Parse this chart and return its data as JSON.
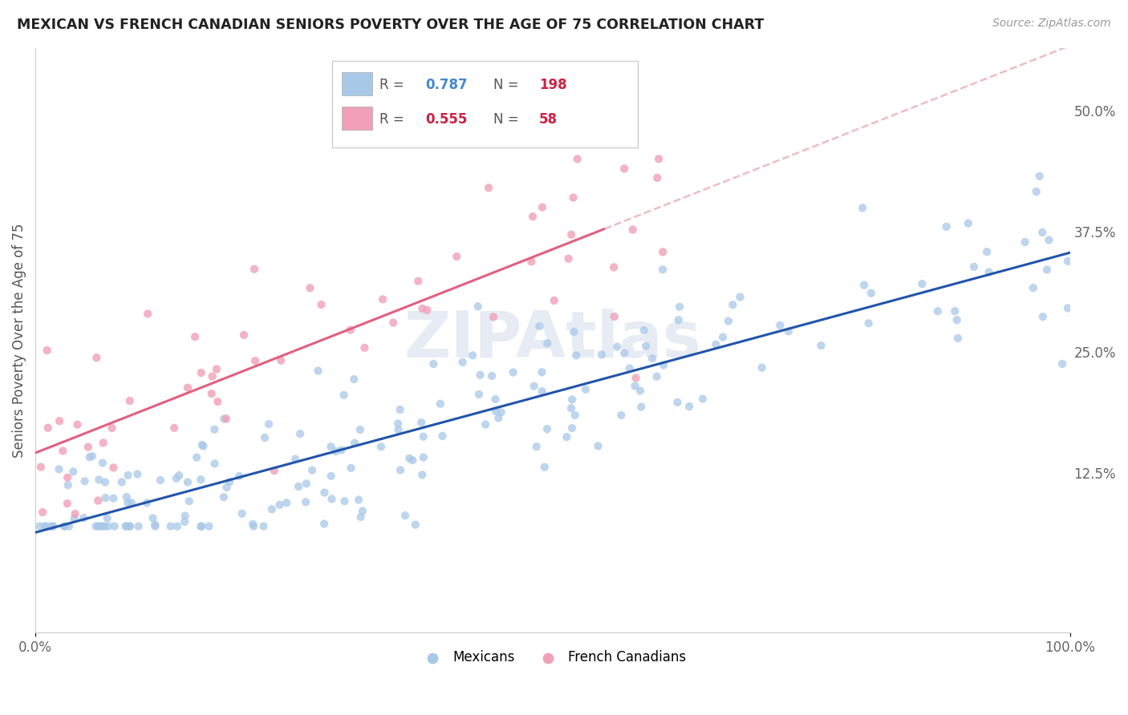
{
  "title": "MEXICAN VS FRENCH CANADIAN SENIORS POVERTY OVER THE AGE OF 75 CORRELATION CHART",
  "source": "Source: ZipAtlas.com",
  "ylabel": "Seniors Poverty Over the Age of 75",
  "mexicans_R": 0.787,
  "mexicans_N": 198,
  "french_R": 0.555,
  "french_N": 58,
  "xlim": [
    0.0,
    1.0
  ],
  "yticks": [
    0.0,
    0.125,
    0.25,
    0.375,
    0.5
  ],
  "ytick_labels": [
    "",
    "12.5%",
    "25.0%",
    "37.5%",
    "50.0%"
  ],
  "xtick_labels": [
    "0.0%",
    "100.0%"
  ],
  "blue_scatter_color": "#a8c8e8",
  "blue_line_color": "#2255aa",
  "pink_scatter_color": "#f0a0b8",
  "pink_line_color": "#e06080",
  "pink_dash_color": "#e8a0b0",
  "watermark_color": "#c8d4e8",
  "title_color": "#222222",
  "source_color": "#999999",
  "legend_R_blue": "#4488cc",
  "legend_N_blue": "#cc2244",
  "legend_R_pink": "#cc2244",
  "legend_N_pink": "#cc2244",
  "background_color": "#ffffff",
  "grid_color": "#dddddd"
}
